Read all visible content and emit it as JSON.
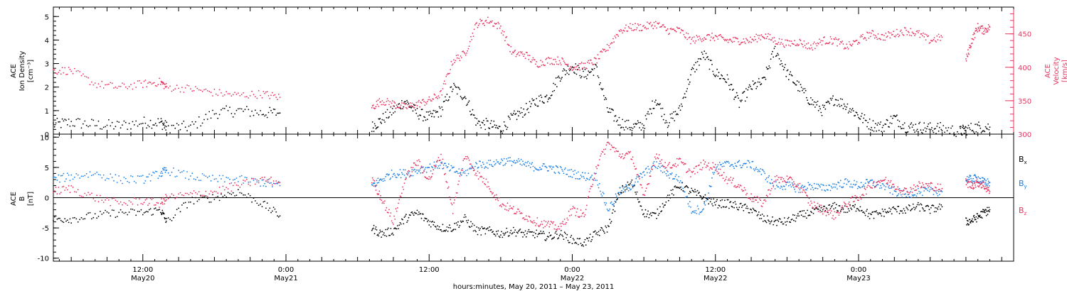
{
  "colors": {
    "black": "#000000",
    "pink": "#e8335f",
    "blue": "#1a7fe6"
  },
  "panels": {
    "top": {
      "left_label": [
        "ACE",
        "Ion Density",
        "[cm⁻³]"
      ],
      "right_label": [
        "ACE",
        "Velocity",
        "[km/s]"
      ],
      "left_ticks": [
        "5",
        "4",
        "3",
        "2",
        "1",
        "0"
      ],
      "right_ticks": [
        "450",
        "400",
        "350",
        "300"
      ]
    },
    "bottom": {
      "left_label": [
        "ACE",
        "B",
        "[nT]"
      ],
      "left_ticks": [
        "10",
        "5",
        "0",
        "-5",
        "-10"
      ],
      "legend": [
        {
          "base": "B",
          "sub": "x",
          "color": "#000000"
        },
        {
          "base": "B",
          "sub": "y",
          "color": "#1a7fe6"
        },
        {
          "base": "B",
          "sub": "z",
          "color": "#e8335f"
        }
      ]
    }
  },
  "time_axis": {
    "ticks": [
      {
        "time": "12:00",
        "date": "May20"
      },
      {
        "time": "0:00",
        "date": "May21"
      },
      {
        "time": "12:00",
        "date": ""
      },
      {
        "time": "0:00",
        "date": "May22"
      },
      {
        "time": "12:00",
        "date": "May22"
      },
      {
        "time": "0:00",
        "date": "May23"
      }
    ],
    "title": "hours:minutes, May 20, 2011 – May 23, 2011"
  },
  "chart_data": [
    {
      "type": "scatter",
      "panel": "top",
      "x_unit": "hours since 2011-05-20 00:00",
      "xlim": [
        4.5,
        85
      ],
      "series": [
        {
          "name": "ACE Ion Density",
          "axis": "left",
          "color": "#000000",
          "ylim": [
            0,
            5.4
          ],
          "segments": [
            {
              "x": [
                4.5,
                6,
                8,
                10,
                12,
                13.5,
                14,
                16,
                18,
                20,
                22,
                23.5
              ],
              "y": [
                0.4,
                0.5,
                0.4,
                0.35,
                0.5,
                0.5,
                0.3,
                0.3,
                0.9,
                1.0,
                0.9,
                0.9
              ]
            },
            {
              "x": [
                31.2,
                32,
                33,
                34,
                35,
                36,
                37,
                38,
                39,
                40,
                41,
                42,
                43,
                44,
                45,
                46,
                47,
                48,
                49,
                50,
                51,
                52,
                53,
                54,
                55,
                56,
                57,
                58,
                59,
                60,
                61,
                62,
                63,
                64,
                65,
                66,
                67,
                68,
                69,
                70,
                71,
                72,
                73,
                74,
                75,
                76,
                77,
                78,
                79,
                80.5,
                81,
                82,
                83
              ],
              "y": [
                0.3,
                0.6,
                1.0,
                1.4,
                0.9,
                0.7,
                1.0,
                2.0,
                1.6,
                0.5,
                0.4,
                0.2,
                0.7,
                1.0,
                1.4,
                1.6,
                2.5,
                2.9,
                2.5,
                2.8,
                1.0,
                0.5,
                0.3,
                0.4,
                1.5,
                0.5,
                1.0,
                2.6,
                3.4,
                2.6,
                2.3,
                1.3,
                2.0,
                2.2,
                3.6,
                2.6,
                2.0,
                1.4,
                1.0,
                1.5,
                1.2,
                0.8,
                0.4,
                0.3,
                0.7,
                0.3,
                0.3,
                0.25,
                0.25,
                0.1,
                0.2,
                0.3,
                0.3
              ]
            }
          ]
        },
        {
          "name": "ACE Velocity",
          "axis": "right",
          "color": "#e8335f",
          "ylim": [
            300,
            490
          ],
          "segments": [
            {
              "x": [
                4.5,
                6,
                8,
                10,
                12,
                13.5,
                14,
                16,
                18,
                20,
                22,
                23.5
              ],
              "y": [
                395,
                395,
                375,
                370,
                375,
                378,
                370,
                368,
                362,
                358,
                360,
                355
              ]
            },
            {
              "x": [
                31.2,
                32,
                33,
                34,
                35,
                36,
                37,
                38,
                39,
                40,
                41,
                42,
                43,
                44,
                45,
                46,
                47,
                48,
                49,
                50,
                51,
                52,
                53,
                54,
                55,
                56,
                57,
                58,
                59,
                60,
                61,
                62,
                63,
                64,
                65,
                66,
                67,
                68,
                69,
                70,
                71,
                72,
                73,
                74,
                75,
                76,
                77,
                78,
                79
              ],
              "y": [
                340,
                350,
                345,
                340,
                345,
                350,
                360,
                410,
                420,
                465,
                470,
                460,
                420,
                420,
                405,
                410,
                410,
                400,
                402,
                410,
                430,
                455,
                460,
                460,
                465,
                455,
                455,
                440,
                445,
                445,
                440,
                440,
                440,
                448,
                440,
                435,
                438,
                430,
                440,
                440,
                430,
                440,
                450,
                445,
                450,
                455,
                450,
                440,
                445
              ]
            },
            {
              "x": [
                81,
                81.5,
                82,
                82.5,
                83
              ],
              "y": [
                410,
                440,
                460,
                455,
                460
              ]
            }
          ]
        }
      ]
    },
    {
      "type": "scatter",
      "panel": "bottom",
      "x_unit": "hours since 2011-05-20 00:00",
      "xlim": [
        4.5,
        85
      ],
      "ylim": [
        -10.5,
        10.5
      ],
      "hline": 0,
      "series": [
        {
          "name": "Bx",
          "color": "#000000",
          "segments": [
            {
              "x": [
                4.5,
                6,
                8,
                10,
                12,
                13.5,
                14,
                16,
                18,
                20,
                22,
                23.5
              ],
              "y": [
                -3.5,
                -3.5,
                -3,
                -2.5,
                -2.5,
                -2,
                -4,
                -0.5,
                0,
                1,
                -1,
                -3
              ]
            },
            {
              "x": [
                31.2,
                32,
                33,
                34,
                35,
                36,
                37,
                38,
                39,
                40,
                41,
                42,
                43,
                44,
                45,
                46,
                47,
                48,
                49,
                50,
                51,
                52,
                53,
                54,
                55,
                56,
                57,
                58,
                59,
                60,
                61,
                62,
                63,
                64,
                65,
                66,
                67,
                68,
                69,
                70,
                71,
                72,
                73,
                74,
                75,
                76,
                77,
                78,
                79
              ],
              "y": [
                -5,
                -6,
                -5.5,
                -3.5,
                -2.5,
                -4,
                -5,
                -5,
                -3.5,
                -5.5,
                -5.5,
                -6,
                -5.5,
                -6,
                -6,
                -6.5,
                -6,
                -7,
                -7.5,
                -6,
                -5,
                1,
                2.5,
                -2.5,
                -3,
                0,
                2,
                1,
                0,
                -1,
                -1,
                -1.5,
                -2,
                -3.5,
                -4,
                -4,
                -3,
                -2.5,
                -2,
                -1.5,
                -2,
                -1.5,
                -3,
                -2.5,
                -2,
                -2,
                -1.5,
                -2,
                -1.5
              ]
            },
            {
              "x": [
                81,
                81.5,
                82,
                82.5,
                83
              ],
              "y": [
                -4,
                -3.8,
                -3.2,
                -2.5,
                -2
              ]
            }
          ]
        },
        {
          "name": "By",
          "color": "#1a7fe6",
          "segments": [
            {
              "x": [
                4.5,
                6,
                8,
                10,
                12,
                13.5,
                14,
                16,
                18,
                20,
                22,
                23.5
              ],
              "y": [
                3,
                3.5,
                4,
                3,
                3,
                4,
                4.5,
                3.5,
                3,
                3,
                2.5,
                2
              ]
            },
            {
              "x": [
                31.2,
                32,
                33,
                34,
                35,
                36,
                37,
                38,
                39,
                40,
                41,
                42,
                43,
                44,
                45,
                46,
                47,
                48,
                49,
                50,
                51,
                52,
                53,
                54,
                55,
                56,
                57,
                58,
                59,
                60,
                61,
                62,
                63,
                64,
                65,
                66,
                67,
                68,
                69,
                70,
                71,
                72,
                73,
                74,
                75,
                76,
                77,
                78,
                79
              ],
              "y": [
                2,
                3,
                4,
                4,
                4.5,
                5,
                5.5,
                4.5,
                4,
                5.5,
                5.5,
                6,
                6,
                5.5,
                5,
                5,
                4.5,
                4,
                3.5,
                3.5,
                -2,
                1,
                2,
                4,
                5.5,
                4,
                3,
                -2,
                -2,
                5,
                5.5,
                5.5,
                5.5,
                4,
                2,
                2,
                1.5,
                2,
                1.5,
                2,
                2.5,
                2,
                2.5,
                2,
                1,
                0.5,
                1,
                1,
                1
              ]
            },
            {
              "x": [
                81,
                81.5,
                82,
                82.5,
                83
              ],
              "y": [
                3,
                3,
                3.2,
                2.5,
                2.5
              ]
            }
          ]
        },
        {
          "name": "Bz",
          "color": "#e8335f",
          "segments": [
            {
              "x": [
                4.5,
                6,
                8,
                10,
                12,
                13.5,
                14,
                16,
                18,
                20,
                22,
                23.5
              ],
              "y": [
                1,
                1.5,
                0,
                -1,
                -0.5,
                -1,
                0,
                0.5,
                1,
                2,
                3,
                2.5
              ]
            },
            {
              "x": [
                31.2,
                32,
                33,
                34,
                35,
                36,
                37,
                38,
                39,
                40,
                41,
                42,
                43,
                44,
                45,
                46,
                47,
                48,
                49,
                50,
                51,
                52,
                53,
                54,
                55,
                56,
                57,
                58,
                59,
                60,
                61,
                62,
                63,
                64,
                65,
                66,
                67,
                68,
                69,
                70,
                71,
                72,
                73,
                74,
                75,
                76,
                77,
                78,
                79
              ],
              "y": [
                3,
                0,
                -4,
                3,
                6,
                3,
                7,
                -2,
                7,
                4,
                2,
                -1,
                -2,
                -3,
                -4,
                -4.5,
                -5,
                -2,
                -3,
                5,
                9,
                7,
                7,
                0,
                7,
                5,
                6,
                4,
                5.5,
                5,
                3,
                2,
                0,
                -1,
                3,
                3,
                2,
                -1,
                -2,
                -3,
                -1,
                0,
                2,
                3,
                2,
                1,
                2,
                2,
                1.5
              ]
            },
            {
              "x": [
                81,
                81.5,
                82,
                82.5,
                83
              ],
              "y": [
                2.5,
                2,
                2.5,
                2,
                1
              ]
            }
          ]
        }
      ]
    }
  ]
}
